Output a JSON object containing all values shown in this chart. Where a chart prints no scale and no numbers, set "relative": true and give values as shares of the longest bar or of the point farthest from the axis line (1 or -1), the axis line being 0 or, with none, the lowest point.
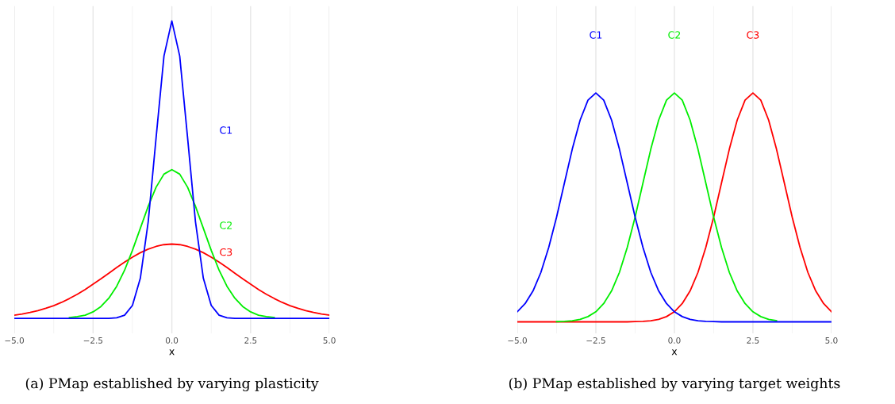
{
  "chart_data": [
    {
      "type": "line",
      "relative": true,
      "xlabel": "x",
      "xlim": [
        -5,
        5
      ],
      "xticks": [
        {
          "value": -5,
          "label": "−5.0"
        },
        {
          "value": -2.5,
          "label": "−2.5"
        },
        {
          "value": 0,
          "label": "0.0"
        },
        {
          "value": 2.5,
          "label": "2.5"
        },
        {
          "value": 5,
          "label": "5.0"
        }
      ],
      "grid": "x",
      "legend": false,
      "tick_labels": "x",
      "annotations": [
        "(a) PMap established by varying plasticity"
      ],
      "x": [
        -5,
        -4.75,
        -4.5,
        -4.25,
        -4,
        -3.75,
        -3.5,
        -3.25,
        -3,
        -2.75,
        -2.5,
        -2.25,
        -2,
        -1.75,
        -1.5,
        -1.25,
        -1,
        -0.75,
        -0.5,
        -0.25,
        0,
        0.25,
        0.5,
        0.75,
        1,
        1.25,
        1.5,
        1.75,
        2,
        2.25,
        2.5,
        2.75,
        3,
        3.25,
        3.5,
        3.75,
        4,
        4.25,
        4.5,
        4.75,
        5
      ],
      "series": [
        {
          "name": "C1",
          "color": "#0000ff",
          "values": [
            0,
            0,
            0,
            0,
            0,
            0,
            0,
            0,
            0,
            0,
            0,
            0,
            0,
            0.002,
            0.011,
            0.044,
            0.135,
            0.325,
            0.607,
            0.882,
            1,
            0.882,
            0.607,
            0.325,
            0.135,
            0.044,
            0.011,
            0.002,
            0,
            0,
            0,
            0,
            0,
            0,
            0,
            0,
            0,
            0,
            0,
            0,
            0
          ]
        },
        {
          "name": "C2",
          "color": "#00ee00",
          "values": [
            null,
            null,
            null,
            null,
            null,
            null,
            null,
            0.003,
            0.006,
            0.011,
            0.022,
            0.04,
            0.068,
            0.108,
            0.162,
            0.229,
            0.303,
            0.377,
            0.441,
            0.485,
            0.5,
            0.485,
            0.441,
            0.377,
            0.303,
            0.229,
            0.162,
            0.108,
            0.068,
            0.04,
            0.022,
            0.011,
            0.006,
            0.003,
            null,
            null,
            null,
            null,
            null,
            null,
            null
          ]
        },
        {
          "name": "C3",
          "color": "#ff0000",
          "values": [
            0.011,
            0.015,
            0.02,
            0.026,
            0.034,
            0.043,
            0.054,
            0.067,
            0.081,
            0.097,
            0.115,
            0.133,
            0.152,
            0.171,
            0.189,
            0.206,
            0.221,
            0.233,
            0.242,
            0.248,
            0.25,
            0.248,
            0.242,
            0.233,
            0.221,
            0.206,
            0.189,
            0.171,
            0.152,
            0.133,
            0.115,
            0.097,
            0.081,
            0.067,
            0.054,
            0.043,
            0.034,
            0.026,
            0.02,
            0.015,
            0.011
          ]
        }
      ]
    },
    {
      "type": "line",
      "relative": true,
      "xlabel": "x",
      "xlim": [
        -5,
        5
      ],
      "xticks": [
        {
          "value": -5,
          "label": "−5.0"
        },
        {
          "value": -2.5,
          "label": "−2.5"
        },
        {
          "value": 0,
          "label": "0.0"
        },
        {
          "value": 2.5,
          "label": "2.5"
        },
        {
          "value": 5,
          "label": "5.0"
        }
      ],
      "grid": "x",
      "legend": false,
      "tick_labels": "x",
      "annotations": [
        "(b) PMap established by varying target weights"
      ],
      "x": [
        -5,
        -4.75,
        -4.5,
        -4.25,
        -4,
        -3.75,
        -3.5,
        -3.25,
        -3,
        -2.75,
        -2.5,
        -2.25,
        -2,
        -1.75,
        -1.5,
        -1.25,
        -1,
        -0.75,
        -0.5,
        -0.25,
        0,
        0.25,
        0.5,
        0.75,
        1,
        1.25,
        1.5,
        1.75,
        2,
        2.25,
        2.5,
        2.75,
        3,
        3.25,
        3.5,
        3.75,
        4,
        4.25,
        4.5,
        4.75,
        5
      ],
      "series": [
        {
          "name": "C1",
          "color": "#0000ff",
          "values": [
            0.044,
            0.08,
            0.135,
            0.216,
            0.325,
            0.458,
            0.607,
            0.755,
            0.882,
            0.969,
            1,
            0.969,
            0.882,
            0.755,
            0.607,
            0.458,
            0.325,
            0.216,
            0.135,
            0.08,
            0.044,
            0.023,
            0.011,
            0.005,
            0.002,
            0.001,
            0,
            0,
            0,
            0,
            0,
            0,
            0,
            0,
            0,
            0,
            0,
            0,
            0,
            0,
            0
          ]
        },
        {
          "name": "C2",
          "color": "#00ee00",
          "values": [
            null,
            null,
            null,
            null,
            null,
            0.001,
            0.002,
            0.005,
            0.011,
            0.023,
            0.044,
            0.08,
            0.135,
            0.216,
            0.325,
            0.458,
            0.607,
            0.755,
            0.882,
            0.969,
            1,
            0.969,
            0.882,
            0.755,
            0.607,
            0.458,
            0.325,
            0.216,
            0.135,
            0.08,
            0.044,
            0.023,
            0.011,
            0.005,
            null,
            null,
            null,
            null,
            null,
            null,
            null
          ]
        },
        {
          "name": "C3",
          "color": "#ff0000",
          "values": [
            0,
            0,
            0,
            0,
            0,
            0,
            0,
            0,
            0,
            0,
            0,
            0,
            0,
            0,
            0,
            0.001,
            0.002,
            0.005,
            0.011,
            0.023,
            0.044,
            0.08,
            0.135,
            0.216,
            0.325,
            0.458,
            0.607,
            0.755,
            0.882,
            0.969,
            1,
            0.969,
            0.882,
            0.755,
            0.607,
            0.458,
            0.325,
            0.216,
            0.135,
            0.08,
            0.044
          ]
        }
      ]
    }
  ]
}
